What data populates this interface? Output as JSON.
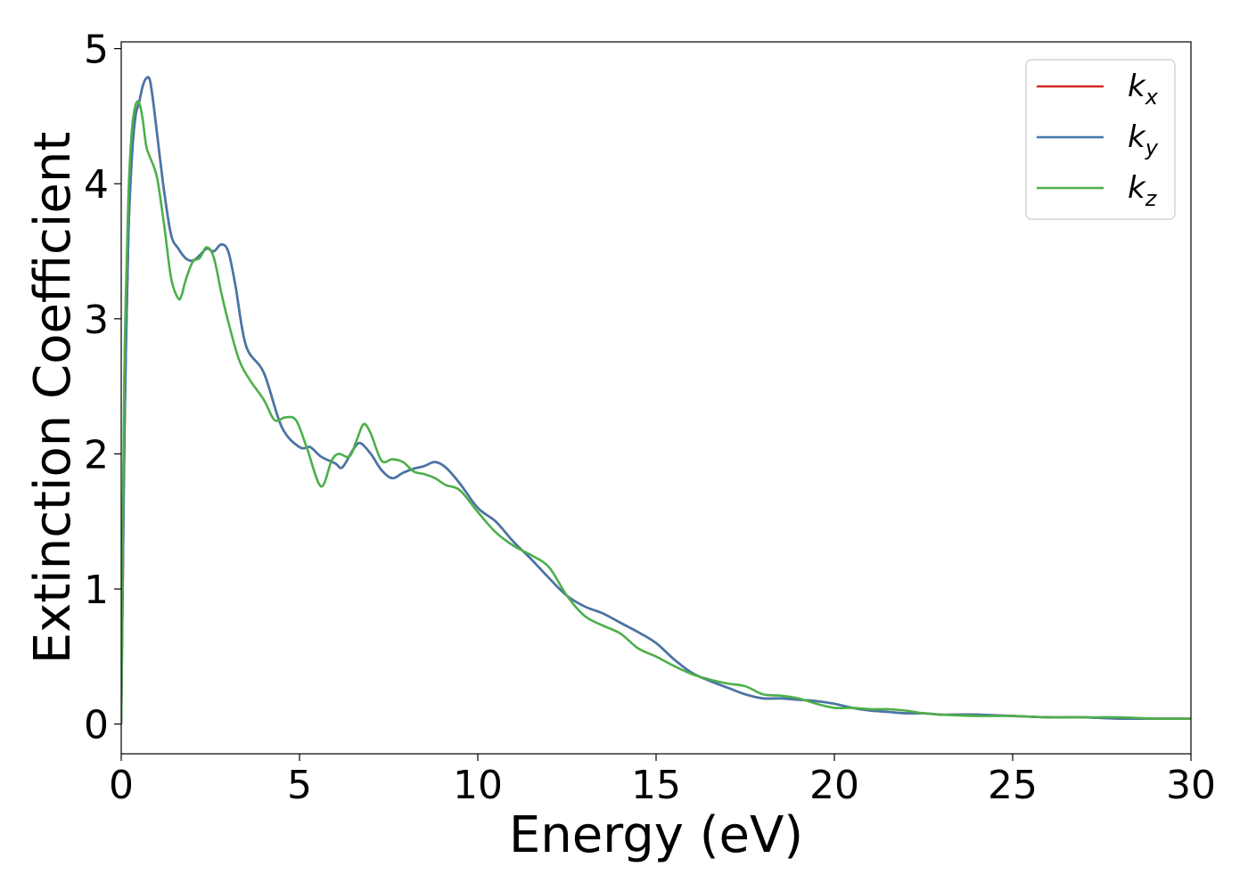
{
  "chart_data": {
    "type": "line",
    "title": "",
    "xlabel": "Energy (eV)",
    "ylabel": "Extinction Coefficient",
    "xlim": [
      0,
      30
    ],
    "ylim": [
      -0.22,
      5.05
    ],
    "xticks": [
      0,
      5,
      10,
      15,
      20,
      25,
      30
    ],
    "yticks": [
      0,
      1,
      2,
      3,
      4,
      5
    ],
    "grid": false,
    "legend_position": "top-right",
    "series": [
      {
        "name": "k",
        "subscript": "x",
        "color": "#d62728",
        "x": [
          0,
          0.05,
          0.1,
          0.2,
          0.3,
          0.4,
          0.5,
          0.6,
          0.7,
          0.8,
          0.9,
          1.0,
          1.2,
          1.4,
          1.6,
          1.8,
          2.0,
          2.2,
          2.4,
          2.6,
          2.8,
          3.0,
          3.2,
          3.5,
          4.0,
          4.5,
          5.0,
          5.3,
          5.6,
          6.0,
          6.2,
          6.5,
          6.7,
          7.0,
          7.3,
          7.6,
          7.9,
          8.2,
          8.5,
          8.8,
          9.1,
          9.5,
          10.0,
          10.5,
          11.0,
          11.5,
          12.0,
          12.5,
          13.0,
          13.5,
          14.0,
          14.5,
          15.0,
          15.5,
          16.0,
          16.5,
          17.0,
          17.5,
          18.0,
          18.5,
          19.0,
          19.5,
          20.0,
          20.5,
          21.0,
          21.5,
          22.0,
          22.5,
          23.0,
          23.5,
          24.0,
          25.0,
          26.0,
          27.0,
          28.0,
          29.0,
          30.0
        ],
        "y": [
          0.0,
          1.2,
          2.3,
          3.6,
          4.2,
          4.5,
          4.6,
          4.72,
          4.78,
          4.77,
          4.6,
          4.38,
          3.95,
          3.62,
          3.52,
          3.45,
          3.43,
          3.47,
          3.52,
          3.5,
          3.55,
          3.5,
          3.25,
          2.8,
          2.6,
          2.2,
          2.05,
          2.05,
          1.98,
          1.93,
          1.9,
          2.03,
          2.08,
          2.0,
          1.88,
          1.82,
          1.86,
          1.89,
          1.91,
          1.94,
          1.9,
          1.78,
          1.6,
          1.5,
          1.35,
          1.22,
          1.08,
          0.95,
          0.87,
          0.82,
          0.75,
          0.68,
          0.6,
          0.48,
          0.38,
          0.32,
          0.27,
          0.22,
          0.19,
          0.19,
          0.18,
          0.17,
          0.15,
          0.12,
          0.1,
          0.09,
          0.08,
          0.08,
          0.07,
          0.07,
          0.07,
          0.06,
          0.05,
          0.05,
          0.04,
          0.04,
          0.04
        ]
      },
      {
        "name": "k",
        "subscript": "y",
        "color": "#4477aa",
        "x": [
          0,
          0.05,
          0.1,
          0.2,
          0.3,
          0.4,
          0.5,
          0.6,
          0.7,
          0.8,
          0.9,
          1.0,
          1.2,
          1.4,
          1.6,
          1.8,
          2.0,
          2.2,
          2.4,
          2.6,
          2.8,
          3.0,
          3.2,
          3.5,
          4.0,
          4.5,
          5.0,
          5.3,
          5.6,
          6.0,
          6.2,
          6.5,
          6.7,
          7.0,
          7.3,
          7.6,
          7.9,
          8.2,
          8.5,
          8.8,
          9.1,
          9.5,
          10.0,
          10.5,
          11.0,
          11.5,
          12.0,
          12.5,
          13.0,
          13.5,
          14.0,
          14.5,
          15.0,
          15.5,
          16.0,
          16.5,
          17.0,
          17.5,
          18.0,
          18.5,
          19.0,
          19.5,
          20.0,
          20.5,
          21.0,
          21.5,
          22.0,
          22.5,
          23.0,
          23.5,
          24.0,
          25.0,
          26.0,
          27.0,
          28.0,
          29.0,
          30.0
        ],
        "y": [
          0.0,
          1.2,
          2.3,
          3.6,
          4.2,
          4.5,
          4.6,
          4.72,
          4.78,
          4.77,
          4.6,
          4.38,
          3.95,
          3.62,
          3.52,
          3.45,
          3.43,
          3.47,
          3.52,
          3.5,
          3.55,
          3.5,
          3.25,
          2.8,
          2.6,
          2.2,
          2.05,
          2.05,
          1.98,
          1.93,
          1.9,
          2.03,
          2.08,
          2.0,
          1.88,
          1.82,
          1.86,
          1.89,
          1.91,
          1.94,
          1.9,
          1.78,
          1.6,
          1.5,
          1.35,
          1.22,
          1.08,
          0.95,
          0.87,
          0.82,
          0.75,
          0.68,
          0.6,
          0.48,
          0.38,
          0.32,
          0.27,
          0.22,
          0.19,
          0.19,
          0.18,
          0.17,
          0.15,
          0.12,
          0.1,
          0.09,
          0.08,
          0.08,
          0.07,
          0.07,
          0.07,
          0.06,
          0.05,
          0.05,
          0.04,
          0.04,
          0.04
        ]
      },
      {
        "name": "k",
        "subscript": "z",
        "color": "#4daf4a",
        "x": [
          0,
          0.05,
          0.1,
          0.2,
          0.3,
          0.4,
          0.5,
          0.6,
          0.7,
          0.8,
          1.0,
          1.2,
          1.4,
          1.6,
          1.7,
          1.8,
          2.0,
          2.2,
          2.4,
          2.6,
          2.8,
          3.0,
          3.3,
          3.6,
          4.0,
          4.3,
          4.6,
          4.9,
          5.2,
          5.6,
          5.9,
          6.1,
          6.4,
          6.6,
          6.8,
          7.0,
          7.3,
          7.6,
          7.9,
          8.2,
          8.5,
          8.8,
          9.1,
          9.5,
          10.0,
          10.5,
          11.0,
          11.5,
          12.0,
          12.5,
          13.0,
          13.5,
          14.0,
          14.5,
          15.0,
          15.5,
          16.0,
          16.5,
          17.0,
          17.5,
          18.0,
          18.5,
          19.0,
          19.5,
          20.0,
          20.5,
          21.0,
          21.5,
          22.0,
          22.5,
          23.0,
          24.0,
          25.0,
          26.0,
          27.0,
          28.0,
          29.0,
          30.0
        ],
        "y": [
          0.0,
          1.6,
          2.8,
          3.9,
          4.4,
          4.58,
          4.6,
          4.48,
          4.28,
          4.2,
          4.05,
          3.7,
          3.3,
          3.15,
          3.18,
          3.28,
          3.42,
          3.45,
          3.53,
          3.45,
          3.2,
          2.98,
          2.7,
          2.55,
          2.4,
          2.25,
          2.27,
          2.25,
          2.05,
          1.76,
          1.95,
          2.0,
          1.98,
          2.1,
          2.22,
          2.15,
          1.95,
          1.96,
          1.94,
          1.87,
          1.85,
          1.82,
          1.77,
          1.73,
          1.57,
          1.42,
          1.32,
          1.25,
          1.16,
          0.95,
          0.8,
          0.73,
          0.67,
          0.56,
          0.5,
          0.43,
          0.37,
          0.33,
          0.3,
          0.28,
          0.22,
          0.21,
          0.19,
          0.15,
          0.12,
          0.12,
          0.11,
          0.11,
          0.1,
          0.08,
          0.07,
          0.06,
          0.06,
          0.05,
          0.05,
          0.05,
          0.04,
          0.04
        ]
      }
    ]
  }
}
